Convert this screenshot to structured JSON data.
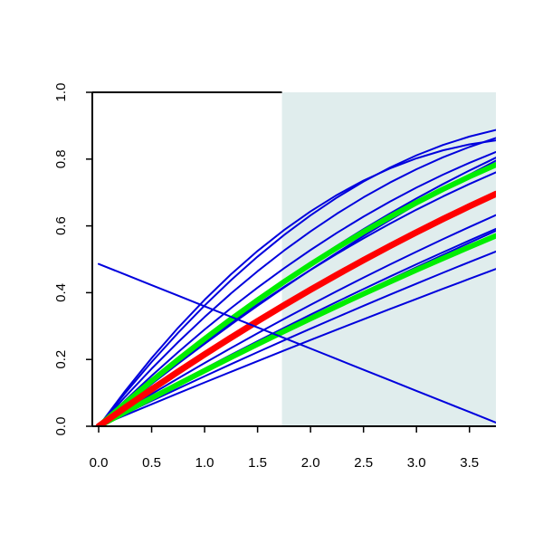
{
  "chart_data": {
    "type": "line",
    "title": "",
    "xlabel": "",
    "ylabel": "",
    "xlim": [
      -0.06,
      3.75
    ],
    "ylim": [
      0.0,
      1.0
    ],
    "grid": false,
    "x_ticks": [
      "0.0",
      "0.5",
      "1.0",
      "1.5",
      "2.0",
      "2.5",
      "3.0",
      "3.5"
    ],
    "y_ticks": [
      "0.0",
      "0.2",
      "0.4",
      "0.6",
      "0.8",
      "1.0"
    ],
    "shaded_region": {
      "x_start": 1.73,
      "x_end": 3.75,
      "color": "#e0eded"
    },
    "x": [
      0.0,
      0.25,
      0.5,
      0.75,
      1.0,
      1.25,
      1.5,
      1.75,
      2.0,
      2.25,
      2.5,
      2.75,
      3.0,
      3.25,
      3.5,
      3.75
    ],
    "series": [
      {
        "color": "#0000dd",
        "width": 2,
        "values": [
          0.0,
          0.1058,
          0.2041,
          0.295,
          0.3787,
          0.4553,
          0.5249,
          0.5876,
          0.6435,
          0.6929,
          0.7357,
          0.7721,
          0.8022,
          0.8262,
          0.8441,
          0.856
        ]
      },
      {
        "color": "#0000dd",
        "width": 2,
        "values": [
          0.0,
          0.0991,
          0.1924,
          0.2799,
          0.3616,
          0.4377,
          0.508,
          0.5727,
          0.6317,
          0.685,
          0.7327,
          0.7748,
          0.8113,
          0.8422,
          0.8675,
          0.8873
        ]
      },
      {
        "color": "#0000dd",
        "width": 2,
        "values": [
          0.0,
          0.0884,
          0.1724,
          0.252,
          0.3271,
          0.3979,
          0.4642,
          0.5261,
          0.5836,
          0.6368,
          0.6855,
          0.7298,
          0.7697,
          0.8053,
          0.8364,
          0.8632
        ]
      },
      {
        "color": "#0000dd",
        "width": 2,
        "values": [
          0.0,
          0.0772,
          0.1512,
          0.222,
          0.2896,
          0.354,
          0.4151,
          0.4731,
          0.5278,
          0.5794,
          0.6277,
          0.6728,
          0.7147,
          0.7534,
          0.7889,
          0.8212
        ]
      },
      {
        "color": "#0000dd",
        "width": 2,
        "values": [
          0.0,
          0.0687,
          0.1353,
          0.1997,
          0.262,
          0.3221,
          0.38,
          0.4358,
          0.4894,
          0.5409,
          0.5902,
          0.6373,
          0.6823,
          0.7251,
          0.7658,
          0.8043
        ]
      },
      {
        "color": "#0000dd",
        "width": 2,
        "values": [
          0.0,
          0.0664,
          0.1305,
          0.1924,
          0.252,
          0.3094,
          0.3646,
          0.4175,
          0.4682,
          0.5166,
          0.5628,
          0.6068,
          0.6486,
          0.6881,
          0.7254,
          0.7605
        ]
      },
      {
        "color": "#0000dd",
        "width": 2,
        "values": [
          0.0,
          0.0641,
          0.1266,
          0.1875,
          0.2468,
          0.3046,
          0.3608,
          0.4154,
          0.4684,
          0.5198,
          0.5697,
          0.618,
          0.6647,
          0.7099,
          0.7535,
          0.7955
        ]
      },
      {
        "color": "#0000dd",
        "width": 2,
        "values": [
          0.0,
          0.0558,
          0.1103,
          0.1634,
          0.2152,
          0.2656,
          0.3147,
          0.3624,
          0.4088,
          0.4538,
          0.4975,
          0.5398,
          0.5808,
          0.6205,
          0.6588,
          0.6957
        ]
      },
      {
        "color": "#0000dd",
        "width": 2,
        "values": [
          0.0,
          0.0487,
          0.0965,
          0.1434,
          0.1893,
          0.2343,
          0.2783,
          0.3214,
          0.3636,
          0.4048,
          0.4451,
          0.4844,
          0.5228,
          0.5603,
          0.5968,
          0.6324
        ]
      },
      {
        "color": "#0000dd",
        "width": 2,
        "values": [
          0.0,
          0.0441,
          0.0876,
          0.1304,
          0.1725,
          0.2139,
          0.2547,
          0.2948,
          0.3342,
          0.3729,
          0.4109,
          0.4483,
          0.485,
          0.521,
          0.5564,
          0.5911
        ]
      },
      {
        "color": "#0000dd",
        "width": 2,
        "values": [
          0.0,
          0.0421,
          0.0838,
          0.125,
          0.1658,
          0.2062,
          0.2461,
          0.2856,
          0.3246,
          0.3632,
          0.4013,
          0.439,
          0.4763,
          0.5131,
          0.5494,
          0.5853
        ]
      },
      {
        "color": "#0000dd",
        "width": 2,
        "values": [
          0.0,
          0.0381,
          0.0758,
          0.113,
          0.1498,
          0.1861,
          0.2219,
          0.2573,
          0.2922,
          0.3266,
          0.3606,
          0.3941,
          0.4271,
          0.4597,
          0.4918,
          0.5234
        ]
      },
      {
        "color": "#0000dd",
        "width": 2,
        "values": [
          0.0,
          0.0331,
          0.066,
          0.0987,
          0.1311,
          0.1632,
          0.1951,
          0.2268,
          0.2582,
          0.2894,
          0.3203,
          0.351,
          0.3814,
          0.4116,
          0.4415,
          0.4712
        ]
      },
      {
        "color": "#00ee00",
        "width": 6,
        "values": [
          0.0,
          0.069,
          0.1356,
          0.1998,
          0.2616,
          0.321,
          0.378,
          0.4326,
          0.4848,
          0.5346,
          0.582,
          0.627,
          0.6696,
          0.7098,
          0.7476,
          0.783
        ]
      },
      {
        "color": "#00ee00",
        "width": 6,
        "values": [
          0.0,
          0.0426,
          0.0845,
          0.1258,
          0.1664,
          0.2064,
          0.2457,
          0.2844,
          0.3224,
          0.3598,
          0.3965,
          0.4326,
          0.468,
          0.5028,
          0.5369,
          0.5704
        ]
      },
      {
        "color": "#ff0000",
        "width": 7,
        "values": [
          0.0,
          0.0558,
          0.1103,
          0.1634,
          0.2152,
          0.2656,
          0.3147,
          0.3624,
          0.4088,
          0.4538,
          0.4975,
          0.5398,
          0.5808,
          0.6205,
          0.6588,
          0.6957
        ]
      },
      {
        "color": "#0000dd",
        "width": 2,
        "values": [
          0.486,
          0.4543,
          0.4227,
          0.391,
          0.3593,
          0.3277,
          0.296,
          0.2643,
          0.2327,
          0.201,
          0.1693,
          0.1377,
          0.106,
          0.0743,
          0.0427,
          0.011
        ]
      }
    ]
  }
}
